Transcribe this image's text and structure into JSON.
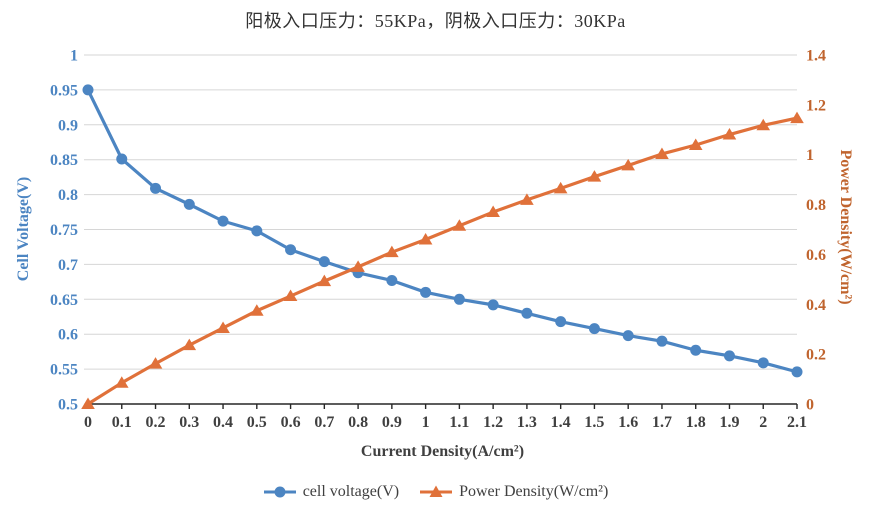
{
  "title": "阳极入口压力：55KPa，阴极入口压力：30KPa",
  "axes": {
    "left_title": "Cell Voltage(V)",
    "right_title": "Power Density(W/cm²)",
    "bottom_title": "Current Density(A/cm²)"
  },
  "legend": {
    "items": [
      {
        "label": "cell voltage(V)",
        "marker": "circle"
      },
      {
        "label": "Power Density(W/cm²)",
        "marker": "triangle"
      }
    ]
  },
  "colors": {
    "voltage_series": "#4c85c2",
    "power_series": "#e0713a",
    "left_axis_text": "#4c85c2",
    "right_axis_text": "#c0642e",
    "bottom_axis_text": "#404040",
    "legend_text": "#3f3f3f",
    "gridline": "#d6d6d6",
    "axis_line": "#262626",
    "title_text": "#333333"
  },
  "chart_data": {
    "type": "line",
    "title": "阳极入口压力：55KPa，阴极入口压力：30KPa",
    "xlabel": "Current Density(A/cm²)",
    "ylabel_left": "Cell Voltage(V)",
    "ylabel_right": "Power Density(W/cm²)",
    "x": [
      0,
      0.1,
      0.2,
      0.3,
      0.4,
      0.5,
      0.6,
      0.7,
      0.8,
      0.9,
      1.0,
      1.1,
      1.2,
      1.3,
      1.4,
      1.5,
      1.6,
      1.7,
      1.8,
      1.9,
      2.0,
      2.1
    ],
    "series": [
      {
        "name": "cell voltage(V)",
        "axis": "left",
        "marker": "circle",
        "color": "#4c85c2",
        "values": [
          0.95,
          0.851,
          0.809,
          0.786,
          0.762,
          0.748,
          0.721,
          0.704,
          0.688,
          0.677,
          0.66,
          0.65,
          0.642,
          0.63,
          0.618,
          0.608,
          0.598,
          0.59,
          0.577,
          0.569,
          0.559,
          0.546
        ]
      },
      {
        "name": "Power Density(W/cm²)",
        "axis": "right",
        "marker": "triangle",
        "color": "#e0713a",
        "values": [
          0.0,
          0.085,
          0.162,
          0.236,
          0.305,
          0.374,
          0.433,
          0.493,
          0.55,
          0.609,
          0.66,
          0.715,
          0.77,
          0.819,
          0.865,
          0.912,
          0.957,
          1.003,
          1.039,
          1.081,
          1.118,
          1.147
        ]
      }
    ],
    "xlim": [
      0,
      2.1
    ],
    "xtick_step": 0.1,
    "ylim_left": [
      0.5,
      1.0
    ],
    "ytick_step_left": 0.05,
    "ylim_right": [
      0,
      1.4
    ],
    "ytick_step_right": 0.2,
    "grid": true,
    "legend_position": "bottom"
  }
}
